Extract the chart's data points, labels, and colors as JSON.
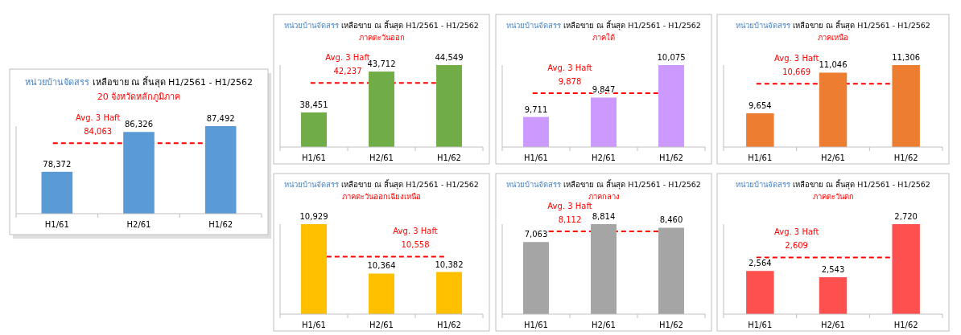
{
  "chart_data": [
    {
      "type": "bar",
      "title": "หน่วยบ้านจัดสรร เหลือขาย ณ สิ้นสุด H1/2561 - H1/2562",
      "subtitle": "20 จังหวัดหลักภูมิภาค",
      "categories": [
        "H1/61",
        "H2/61",
        "H1/62"
      ],
      "values": [
        78372,
        86326,
        87492
      ],
      "value_labels": [
        "78,372",
        "86,326",
        "87,492"
      ],
      "color": "#5b9bd5",
      "ylim": [
        70000,
        87492
      ],
      "tick_labels": "x",
      "ref_lines": [
        {
          "axis": "y",
          "value": 84063,
          "label": "Avg. 3 Haft",
          "color": "#ff0000",
          "line_style": "dashed"
        }
      ],
      "annotations": [
        {
          "text": "84,063",
          "y": 84063
        }
      ]
    },
    {
      "type": "bar",
      "title": "หน่วยบ้านจัดสรร เหลือขาย ณ สิ้นสุด H1/2561 - H1/2562",
      "subtitle": "ภาคตะวันออก",
      "categories": [
        "H1/61",
        "H2/61",
        "H1/62"
      ],
      "values": [
        38451,
        43712,
        44549
      ],
      "value_labels": [
        "38,451",
        "43,712",
        "44,549"
      ],
      "color": "#70ad47",
      "ylim": [
        34000,
        44549
      ],
      "tick_labels": "x",
      "ref_lines": [
        {
          "axis": "y",
          "value": 42237,
          "label": "Avg. 3 Haft",
          "color": "#ff0000",
          "line_style": "dashed"
        }
      ],
      "annotations": [
        {
          "text": "42,237",
          "y": 42237
        }
      ]
    },
    {
      "type": "bar",
      "title": "หน่วยบ้านจัดสรร เหลือขาย ณ สิ้นสุด H1/2561 - H1/2562",
      "subtitle": "ภาคใต้",
      "categories": [
        "H1/61",
        "H2/61",
        "H1/62"
      ],
      "values": [
        9711,
        9847,
        10075
      ],
      "value_labels": [
        "9,711",
        "9,847",
        "10,075"
      ],
      "color": "#cc99ff",
      "ylim": [
        9500,
        10075
      ],
      "tick_labels": "x",
      "ref_lines": [
        {
          "axis": "y",
          "value": 9878,
          "label": "Avg. 3 Haft",
          "color": "#ff0000",
          "line_style": "dashed"
        }
      ],
      "annotations": [
        {
          "text": "9,878",
          "y": 9878
        }
      ]
    },
    {
      "type": "bar",
      "title": "หน่วยบ้านจัดสรร เหลือขาย ณ สิ้นสุด H1/2561 - H1/2562",
      "subtitle": "ภาคเหนือ",
      "categories": [
        "H1/61",
        "H2/61",
        "H1/62"
      ],
      "values": [
        9654,
        11046,
        11306
      ],
      "value_labels": [
        "9,654",
        "11,046",
        "11,306"
      ],
      "color": "#ed7d31",
      "ylim": [
        8500,
        11306
      ],
      "tick_labels": "x",
      "ref_lines": [
        {
          "axis": "y",
          "value": 10669,
          "label": "Avg. 3 Haft",
          "color": "#ff0000",
          "line_style": "dashed"
        }
      ],
      "annotations": [
        {
          "text": "10,669",
          "y": 10669
        }
      ]
    },
    {
      "type": "bar",
      "title": "หน่วยบ้านจัดสรร เหลือขาย ณ สิ้นสุด H1/2561 - H1/2562",
      "subtitle": "ภาคตะวันออกเฉียงเหนือ",
      "categories": [
        "H1/61",
        "H2/61",
        "H1/62"
      ],
      "values": [
        10929,
        10364,
        10382
      ],
      "value_labels": [
        "10,929",
        "10,364",
        "10,382"
      ],
      "color": "#ffc000",
      "ylim": [
        9900,
        10929
      ],
      "tick_labels": "x",
      "ref_lines": [
        {
          "axis": "y",
          "value": 10558,
          "label": "Avg. 3 Haft",
          "color": "#ff0000",
          "line_style": "dashed"
        }
      ],
      "annotations": [
        {
          "text": "10,558",
          "y": 10558
        }
      ]
    },
    {
      "type": "bar",
      "title": "หน่วยบ้านจัดสรร เหลือขาย ณ สิ้นสุด H1/2561 - H1/2562",
      "subtitle": "ภาคกลาง",
      "categories": [
        "H1/61",
        "H2/61",
        "H1/62"
      ],
      "values": [
        7063,
        8814,
        8460
      ],
      "value_labels": [
        "7,063",
        "8,814",
        "8,460"
      ],
      "color": "#a5a5a5",
      "ylim": [
        0,
        8814
      ],
      "tick_labels": "x",
      "ref_lines": [
        {
          "axis": "y",
          "value": 8112,
          "label": "Avg. 3 Haft",
          "color": "#ff0000",
          "line_style": "dashed"
        }
      ],
      "annotations": [
        {
          "text": "8,112",
          "y": 8112
        }
      ]
    },
    {
      "type": "bar",
      "title": "หน่วยบ้านจัดสรร เหลือขาย ณ สิ้นสุด H1/2561 - H1/2562",
      "subtitle": "ภาคตะวันตก",
      "categories": [
        "H1/61",
        "H2/61",
        "H1/62"
      ],
      "values": [
        2564,
        2543,
        2720
      ],
      "value_labels": [
        "2,564",
        "2,543",
        "2,720"
      ],
      "color": "#ff5050",
      "ylim": [
        2420,
        2720
      ],
      "tick_labels": "x",
      "ref_lines": [
        {
          "axis": "y",
          "value": 2609,
          "label": "Avg. 3 Haft",
          "color": "#ff0000",
          "line_style": "dashed"
        }
      ],
      "annotations": [
        {
          "text": "2,609",
          "y": 2609
        }
      ]
    }
  ]
}
